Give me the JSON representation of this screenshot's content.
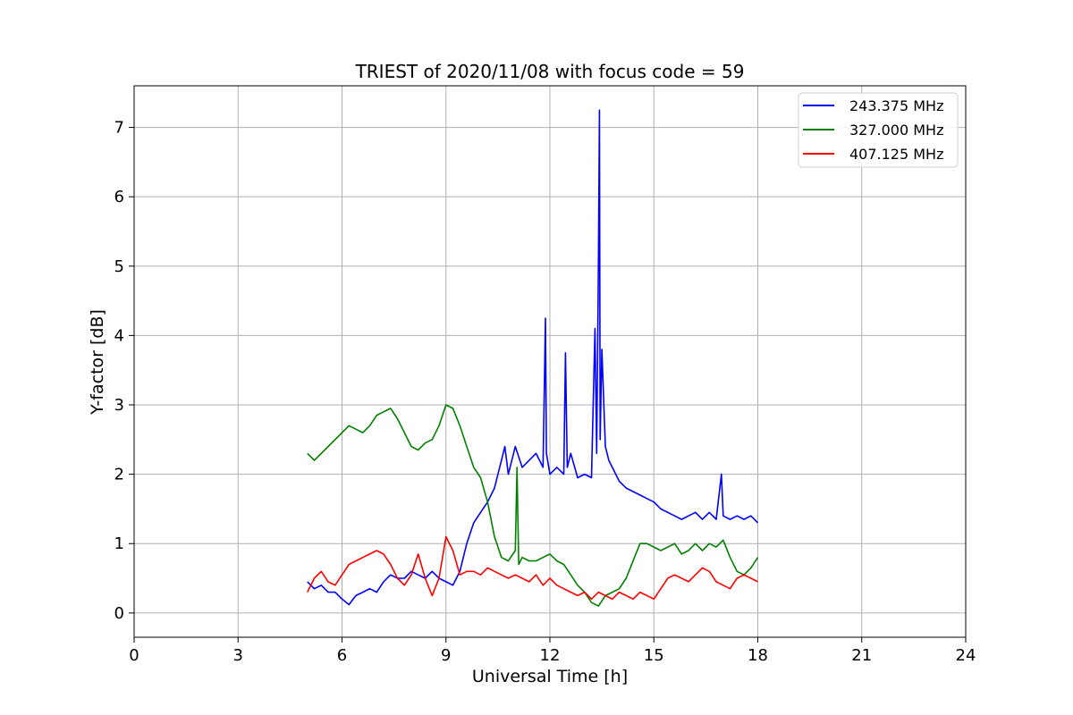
{
  "chart_data": {
    "type": "line",
    "title": "TRIEST of 2020/11/08 with focus code = 59",
    "xlabel": "Universal Time [h]",
    "ylabel": "Y-factor [dB]",
    "xlim": [
      0,
      24
    ],
    "ylim": [
      -0.35,
      7.6
    ],
    "xticks": [
      0,
      3,
      6,
      9,
      12,
      15,
      18,
      21,
      24
    ],
    "yticks": [
      0,
      1,
      2,
      3,
      4,
      5,
      6,
      7
    ],
    "grid": true,
    "legend_position": "top-right",
    "series": [
      {
        "name": "243.375 MHz",
        "color": "#0000ff",
        "x": [
          5.0,
          5.2,
          5.4,
          5.6,
          5.8,
          6.0,
          6.2,
          6.4,
          6.6,
          6.8,
          7.0,
          7.2,
          7.4,
          7.6,
          7.8,
          8.0,
          8.2,
          8.4,
          8.6,
          8.8,
          9.0,
          9.2,
          9.4,
          9.6,
          9.8,
          10.0,
          10.2,
          10.4,
          10.6,
          10.7,
          10.8,
          11.0,
          11.2,
          11.4,
          11.6,
          11.8,
          11.87,
          11.9,
          12.0,
          12.2,
          12.4,
          12.45,
          12.5,
          12.6,
          12.8,
          13.0,
          13.2,
          13.3,
          13.35,
          13.4,
          13.43,
          13.45,
          13.5,
          13.6,
          13.7,
          13.8,
          14.0,
          14.2,
          14.4,
          14.6,
          14.8,
          15.0,
          15.2,
          15.4,
          15.6,
          15.8,
          16.0,
          16.2,
          16.4,
          16.6,
          16.8,
          16.95,
          17.0,
          17.2,
          17.4,
          17.6,
          17.8,
          18.0
        ],
        "values": [
          0.45,
          0.35,
          0.4,
          0.3,
          0.3,
          0.2,
          0.12,
          0.25,
          0.3,
          0.35,
          0.3,
          0.45,
          0.55,
          0.5,
          0.5,
          0.6,
          0.55,
          0.5,
          0.6,
          0.5,
          0.45,
          0.4,
          0.6,
          1.0,
          1.3,
          1.45,
          1.6,
          1.8,
          2.2,
          2.4,
          2.0,
          2.4,
          2.1,
          2.2,
          2.3,
          2.1,
          4.25,
          2.3,
          2.0,
          2.1,
          2.0,
          3.75,
          2.1,
          2.3,
          1.95,
          2.0,
          1.95,
          4.1,
          2.3,
          5.1,
          7.25,
          2.5,
          3.8,
          2.4,
          2.2,
          2.1,
          1.9,
          1.8,
          1.75,
          1.7,
          1.65,
          1.6,
          1.5,
          1.45,
          1.4,
          1.35,
          1.4,
          1.45,
          1.35,
          1.45,
          1.35,
          2.0,
          1.4,
          1.35,
          1.4,
          1.35,
          1.4,
          1.3
        ]
      },
      {
        "name": "327.000 MHz",
        "color": "#008000",
        "x": [
          5.0,
          5.2,
          5.4,
          5.6,
          5.8,
          6.0,
          6.2,
          6.4,
          6.6,
          6.8,
          7.0,
          7.2,
          7.4,
          7.6,
          7.8,
          8.0,
          8.2,
          8.4,
          8.6,
          8.8,
          9.0,
          9.2,
          9.4,
          9.6,
          9.8,
          10.0,
          10.2,
          10.4,
          10.6,
          10.8,
          11.0,
          11.05,
          11.1,
          11.2,
          11.4,
          11.6,
          11.8,
          12.0,
          12.2,
          12.4,
          12.6,
          12.8,
          13.0,
          13.2,
          13.4,
          13.6,
          13.8,
          14.0,
          14.2,
          14.4,
          14.6,
          14.8,
          15.0,
          15.2,
          15.4,
          15.6,
          15.8,
          16.0,
          16.2,
          16.4,
          16.6,
          16.8,
          17.0,
          17.2,
          17.4,
          17.6,
          17.8,
          18.0
        ],
        "values": [
          2.3,
          2.2,
          2.3,
          2.4,
          2.5,
          2.6,
          2.7,
          2.65,
          2.6,
          2.7,
          2.85,
          2.9,
          2.95,
          2.8,
          2.6,
          2.4,
          2.35,
          2.45,
          2.5,
          2.7,
          3.0,
          2.95,
          2.7,
          2.4,
          2.1,
          1.95,
          1.6,
          1.1,
          0.8,
          0.75,
          0.9,
          2.1,
          0.7,
          0.8,
          0.75,
          0.75,
          0.8,
          0.85,
          0.75,
          0.7,
          0.55,
          0.4,
          0.3,
          0.15,
          0.1,
          0.25,
          0.3,
          0.35,
          0.5,
          0.75,
          1.0,
          1.0,
          0.95,
          0.9,
          0.95,
          1.0,
          0.85,
          0.9,
          1.0,
          0.9,
          1.0,
          0.95,
          1.05,
          0.8,
          0.6,
          0.55,
          0.65,
          0.8
        ]
      },
      {
        "name": "407.125 MHz",
        "color": "#ff0000",
        "x": [
          5.0,
          5.2,
          5.4,
          5.6,
          5.8,
          6.0,
          6.2,
          6.4,
          6.6,
          6.8,
          7.0,
          7.2,
          7.4,
          7.6,
          7.8,
          8.0,
          8.2,
          8.4,
          8.6,
          8.8,
          9.0,
          9.2,
          9.4,
          9.6,
          9.8,
          10.0,
          10.2,
          10.4,
          10.6,
          10.8,
          11.0,
          11.2,
          11.4,
          11.6,
          11.8,
          12.0,
          12.2,
          12.4,
          12.6,
          12.8,
          13.0,
          13.2,
          13.4,
          13.6,
          13.8,
          14.0,
          14.2,
          14.4,
          14.6,
          14.8,
          15.0,
          15.2,
          15.4,
          15.6,
          15.8,
          16.0,
          16.2,
          16.4,
          16.6,
          16.8,
          17.0,
          17.2,
          17.4,
          17.6,
          17.8,
          18.0
        ],
        "values": [
          0.3,
          0.5,
          0.6,
          0.45,
          0.4,
          0.55,
          0.7,
          0.75,
          0.8,
          0.85,
          0.9,
          0.85,
          0.7,
          0.5,
          0.4,
          0.55,
          0.85,
          0.5,
          0.25,
          0.5,
          1.1,
          0.9,
          0.55,
          0.6,
          0.6,
          0.55,
          0.65,
          0.6,
          0.55,
          0.5,
          0.55,
          0.5,
          0.45,
          0.55,
          0.4,
          0.5,
          0.4,
          0.35,
          0.3,
          0.25,
          0.3,
          0.2,
          0.3,
          0.25,
          0.2,
          0.3,
          0.25,
          0.2,
          0.3,
          0.25,
          0.2,
          0.35,
          0.5,
          0.55,
          0.5,
          0.45,
          0.55,
          0.65,
          0.6,
          0.45,
          0.4,
          0.35,
          0.5,
          0.55,
          0.5,
          0.45
        ]
      }
    ]
  }
}
